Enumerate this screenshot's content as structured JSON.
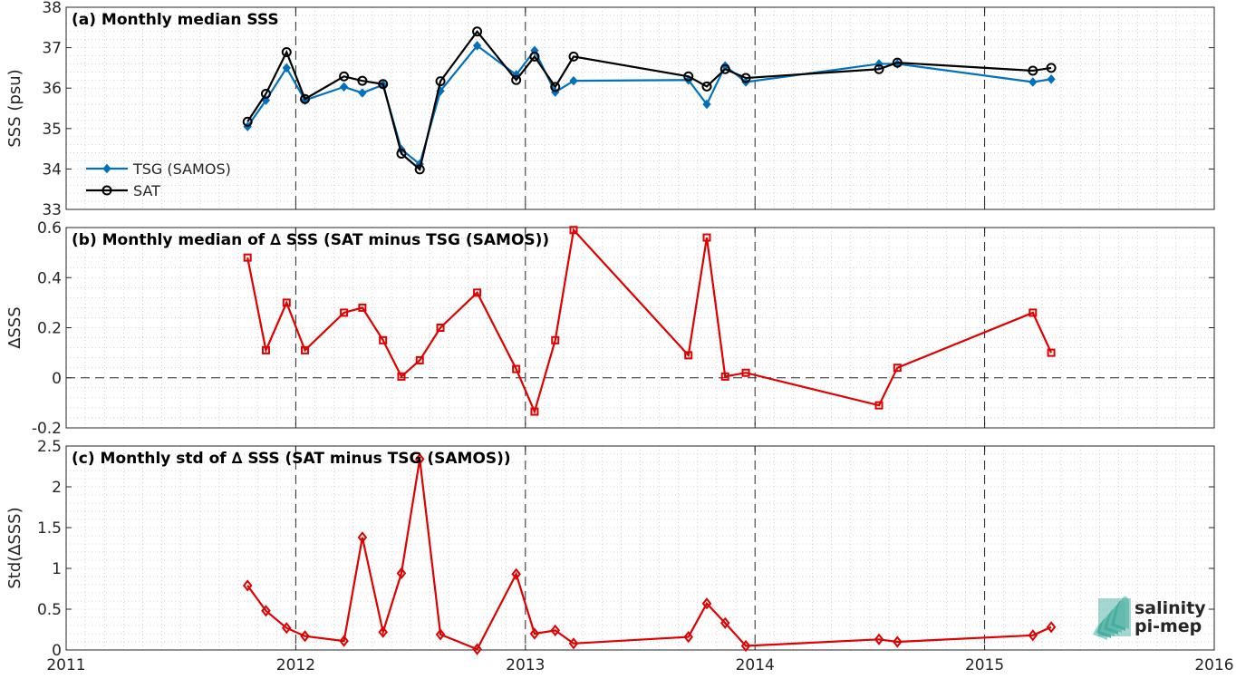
{
  "colors": {
    "tsg": "#0072BD",
    "sat": "#000000",
    "delta": "#E00000",
    "frame": "#262626",
    "grid": "#c8c8c8",
    "logo": "#2a9d8f"
  },
  "logo": {
    "line1": "salinity",
    "line2": "pi-mep"
  },
  "chart_data": [
    {
      "type": "line",
      "title": "(a) Monthly median SSS",
      "ylabel": "SSS (psu)",
      "xlim": [
        2011,
        2016
      ],
      "ylim": [
        33,
        38
      ],
      "x_ticks": [
        "2011",
        "2012",
        "2013",
        "2014",
        "2015",
        "2016"
      ],
      "y_ticks": [
        "33",
        "34",
        "35",
        "36",
        "37",
        "38"
      ],
      "grid": "minor dotted, yearly dashed verticals",
      "legend": {
        "placement": "lower-left"
      },
      "x": [
        2011.79,
        2011.87,
        2011.96,
        2012.04,
        2012.21,
        2012.29,
        2012.38,
        2012.46,
        2012.54,
        2012.63,
        2012.79,
        2012.96,
        2013.04,
        2013.13,
        2013.21,
        2013.71,
        2013.79,
        2013.87,
        2013.96,
        2014.54,
        2014.62,
        2015.21,
        2015.29
      ],
      "series": [
        {
          "name": "TSG (SAMOS)",
          "marker": "filled-diamond",
          "values": [
            35.05,
            35.7,
            36.5,
            35.7,
            36.03,
            35.88,
            36.08,
            34.48,
            34.12,
            35.93,
            37.05,
            36.33,
            36.93,
            35.9,
            36.18,
            36.2,
            35.6,
            36.55,
            36.15,
            36.6,
            36.6,
            36.15,
            36.22
          ]
        },
        {
          "name": "SAT",
          "marker": "open-circle",
          "values": [
            35.17,
            35.86,
            36.89,
            35.73,
            36.29,
            36.18,
            36.1,
            34.38,
            33.99,
            36.17,
            37.4,
            36.2,
            36.78,
            36.03,
            36.78,
            36.29,
            36.04,
            36.47,
            36.25,
            36.47,
            36.63,
            36.43,
            36.5
          ]
        }
      ]
    },
    {
      "type": "line",
      "title": "(b) Monthly median of ∆ SSS (SAT minus TSG (SAMOS))",
      "ylabel": "∆SSS",
      "xlim": [
        2011,
        2016
      ],
      "ylim": [
        -0.2,
        0.6
      ],
      "x_ticks": [
        "2011",
        "2012",
        "2013",
        "2014",
        "2015",
        "2016"
      ],
      "y_ticks": [
        "-0.2",
        "0",
        "0.2",
        "0.4",
        "0.6"
      ],
      "zero_line": true,
      "x": [
        2011.79,
        2011.87,
        2011.96,
        2012.04,
        2012.21,
        2012.29,
        2012.38,
        2012.46,
        2012.54,
        2012.63,
        2012.79,
        2012.96,
        2013.04,
        2013.13,
        2013.21,
        2013.71,
        2013.79,
        2013.87,
        2013.96,
        2014.54,
        2014.62,
        2015.21,
        2015.29
      ],
      "series": [
        {
          "marker": "open-square",
          "values": [
            0.48,
            0.11,
            0.3,
            0.11,
            0.26,
            0.28,
            0.15,
            0.005,
            0.07,
            0.2,
            0.34,
            0.035,
            -0.135,
            0.15,
            0.59,
            0.09,
            0.56,
            0.005,
            0.02,
            -0.11,
            0.04,
            0.26,
            0.1
          ]
        }
      ]
    },
    {
      "type": "line",
      "title": "(c) Monthly std of ∆ SSS (SAT minus TSG (SAMOS))",
      "ylabel": "Std(∆SSS)",
      "xlim": [
        2011,
        2016
      ],
      "ylim": [
        0,
        2.5
      ],
      "x_ticks": [
        "2011",
        "2012",
        "2013",
        "2014",
        "2015",
        "2016"
      ],
      "y_ticks": [
        "0",
        "0.5",
        "1",
        "1.5",
        "2",
        "2.5"
      ],
      "x": [
        2011.79,
        2011.87,
        2011.96,
        2012.04,
        2012.21,
        2012.29,
        2012.38,
        2012.46,
        2012.54,
        2012.63,
        2012.79,
        2012.96,
        2013.04,
        2013.13,
        2013.21,
        2013.71,
        2013.79,
        2013.87,
        2013.96,
        2014.54,
        2014.62,
        2015.21,
        2015.29
      ],
      "series": [
        {
          "marker": "open-diamond",
          "values": [
            0.79,
            0.48,
            0.27,
            0.17,
            0.11,
            1.38,
            0.22,
            0.94,
            2.34,
            0.19,
            0.01,
            0.93,
            0.2,
            0.24,
            0.08,
            0.16,
            0.57,
            0.33,
            0.05,
            0.13,
            0.1,
            0.18,
            0.28
          ]
        }
      ]
    }
  ]
}
